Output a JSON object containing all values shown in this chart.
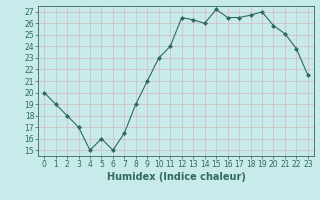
{
  "x": [
    0,
    1,
    2,
    3,
    4,
    5,
    6,
    7,
    8,
    9,
    10,
    11,
    12,
    13,
    14,
    15,
    16,
    17,
    18,
    19,
    20,
    21,
    22,
    23
  ],
  "y": [
    20,
    19,
    18,
    17,
    15,
    16,
    15,
    16.5,
    19,
    21,
    23,
    24,
    26.5,
    26.3,
    26.0,
    27.2,
    26.5,
    26.5,
    26.7,
    27.0,
    25.8,
    25.1,
    23.8,
    21.5
  ],
  "line_color": "#2e6b5e",
  "marker": "D",
  "marker_size": 2,
  "bg_color": "#c8eaea",
  "grid_color": "#b0d0d0",
  "xlabel": "Humidex (Indice chaleur)",
  "xlim": [
    -0.5,
    23.5
  ],
  "ylim": [
    14.5,
    27.5
  ],
  "yticks": [
    15,
    16,
    17,
    18,
    19,
    20,
    21,
    22,
    23,
    24,
    25,
    26,
    27
  ],
  "xticks": [
    0,
    1,
    2,
    3,
    4,
    5,
    6,
    7,
    8,
    9,
    10,
    11,
    12,
    13,
    14,
    15,
    16,
    17,
    18,
    19,
    20,
    21,
    22,
    23
  ],
  "tick_fontsize": 5.5,
  "xlabel_fontsize": 7.0
}
